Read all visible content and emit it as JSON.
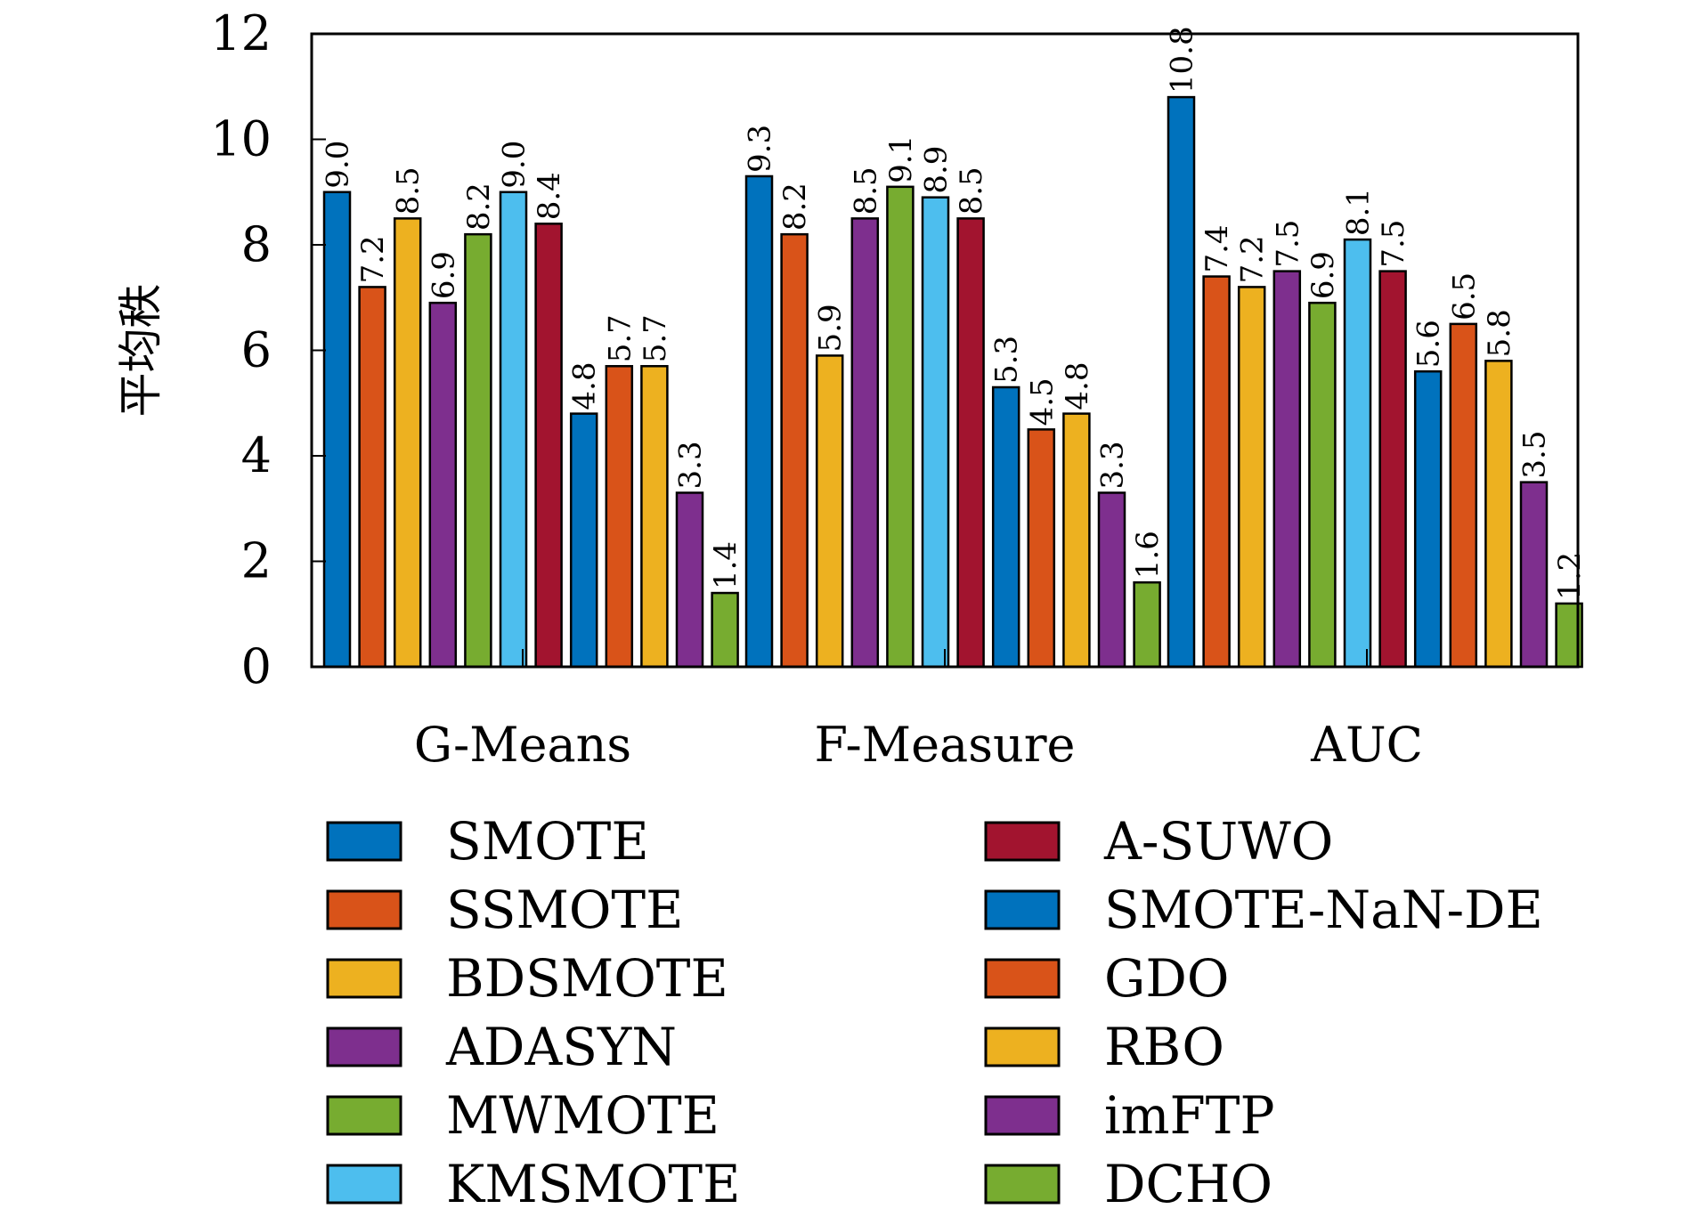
{
  "chart_data": {
    "type": "bar",
    "title": "",
    "xlabel": "",
    "ylabel": "平均秩",
    "ylim": [
      0,
      12
    ],
    "yticks": [
      0,
      2,
      4,
      6,
      8,
      10,
      12
    ],
    "grid": false,
    "legend_position": "bottom",
    "categories": [
      "G-Means",
      "F-Measure",
      "AUC"
    ],
    "series": [
      {
        "name": "SMOTE",
        "color": "#0072BD",
        "values": [
          9.0,
          9.3,
          10.8
        ]
      },
      {
        "name": "SSMOTE",
        "color": "#D95319",
        "values": [
          7.2,
          8.2,
          7.4
        ]
      },
      {
        "name": "BDSMOTE",
        "color": "#EDB120",
        "values": [
          8.5,
          5.9,
          7.2
        ]
      },
      {
        "name": "ADASYN",
        "color": "#7E2F8E",
        "values": [
          6.9,
          8.5,
          7.5
        ]
      },
      {
        "name": "MWMOTE",
        "color": "#77AC30",
        "values": [
          8.2,
          9.1,
          6.9
        ]
      },
      {
        "name": "KMSMOTE",
        "color": "#4DBEEE",
        "values": [
          9.0,
          8.9,
          8.1
        ]
      },
      {
        "name": "A-SUWO",
        "color": "#A2142F",
        "values": [
          8.4,
          8.5,
          7.5
        ]
      },
      {
        "name": "SMOTE-NaN-DE",
        "color": "#0072BD",
        "values": [
          4.8,
          5.3,
          5.6
        ]
      },
      {
        "name": "GDO",
        "color": "#D95319",
        "values": [
          5.7,
          4.5,
          6.5
        ]
      },
      {
        "name": "RBO",
        "color": "#EDB120",
        "values": [
          5.7,
          4.8,
          5.8
        ]
      },
      {
        "name": "imFTP",
        "color": "#7E2F8E",
        "values": [
          3.3,
          3.3,
          3.5
        ]
      },
      {
        "name": "DCHO",
        "color": "#77AC30",
        "values": [
          1.4,
          1.6,
          1.2
        ]
      }
    ]
  }
}
